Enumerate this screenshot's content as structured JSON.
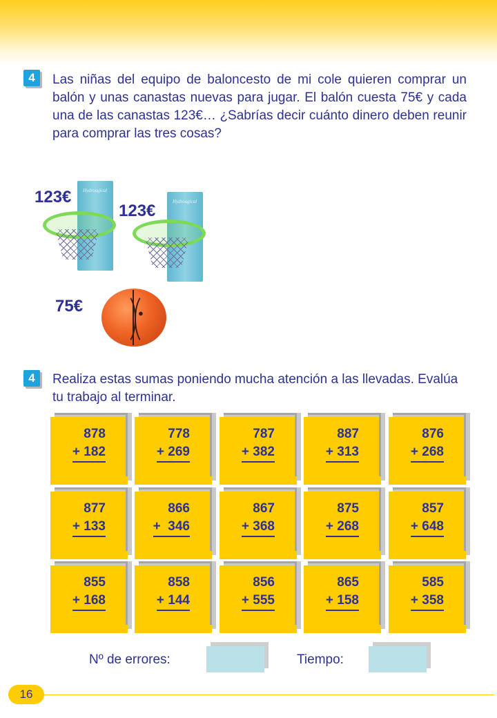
{
  "exercise1": {
    "number": "4",
    "text": "Las niñas del equipo de baloncesto de mi cole quieren comprar un balón y unas canastas nuevas para jugar. El balón cuesta 75€ y cada una de las canastas 123€… ¿Sabrías decir cuánto dinero deben reunir para comprar las tres cosas?",
    "prices": {
      "basket1": "123€",
      "basket2": "123€",
      "ball": "75€"
    },
    "board_label": "Hydroagical"
  },
  "exercise2": {
    "number": "4",
    "text": "Realiza estas sumas poniendo mucha atención a las llevadas. Evalúa tu trabajo al terminar.",
    "sums": [
      [
        {
          "top": "878",
          "bottom": "+ 182"
        },
        {
          "top": "778",
          "bottom": "+ 269"
        },
        {
          "top": "787",
          "bottom": "+ 382"
        },
        {
          "top": "887",
          "bottom": "+ 313"
        },
        {
          "top": "876",
          "bottom": "+ 268"
        }
      ],
      [
        {
          "top": "877",
          "bottom": "+ 133"
        },
        {
          "top": "866",
          "bottom": "+  346"
        },
        {
          "top": "867",
          "bottom": "+ 368"
        },
        {
          "top": "875",
          "bottom": "+ 268"
        },
        {
          "top": "857",
          "bottom": "+ 648"
        }
      ],
      [
        {
          "top": "855",
          "bottom": "+ 168"
        },
        {
          "top": "858",
          "bottom": "+ 144"
        },
        {
          "top": "856",
          "bottom": "+ 555"
        },
        {
          "top": "865",
          "bottom": "+ 158"
        },
        {
          "top": "585",
          "bottom": "+ 358"
        }
      ]
    ]
  },
  "footer": {
    "errors_label": "Nº de errores:",
    "time_label": "Tiempo:",
    "page_number": "16"
  },
  "colors": {
    "text": "#2e3192",
    "card": "#ffcc00",
    "badge": "#1fa3dc",
    "answer_box": "#b9e0e6"
  }
}
